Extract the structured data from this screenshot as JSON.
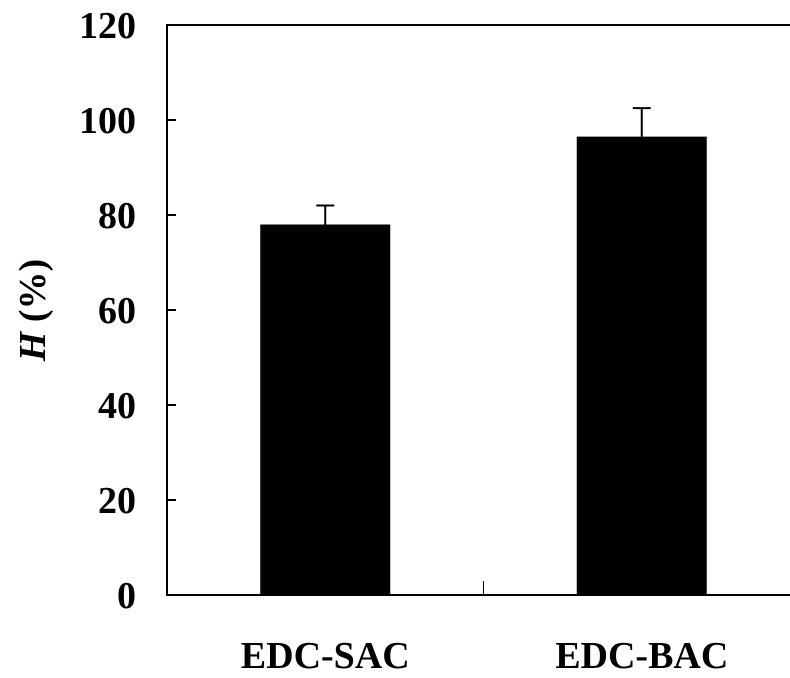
{
  "chart_data": {
    "type": "bar",
    "categories": [
      "EDC-SAC",
      "EDC-BAC"
    ],
    "series": [
      {
        "values": [
          78,
          96.5
        ],
        "error_plus": [
          4,
          6
        ],
        "color": "#000000"
      }
    ],
    "title": "",
    "xlabel": "",
    "ylabel": {
      "symbol": "H",
      "unit": " (%)"
    },
    "ylim": [
      0,
      120
    ],
    "yticks": [
      0,
      20,
      40,
      60,
      80,
      100,
      120
    ],
    "grid": false,
    "legend": "none",
    "colors": {
      "bar": "#000000",
      "axis": "#000000",
      "background": "#ffffff"
    }
  }
}
